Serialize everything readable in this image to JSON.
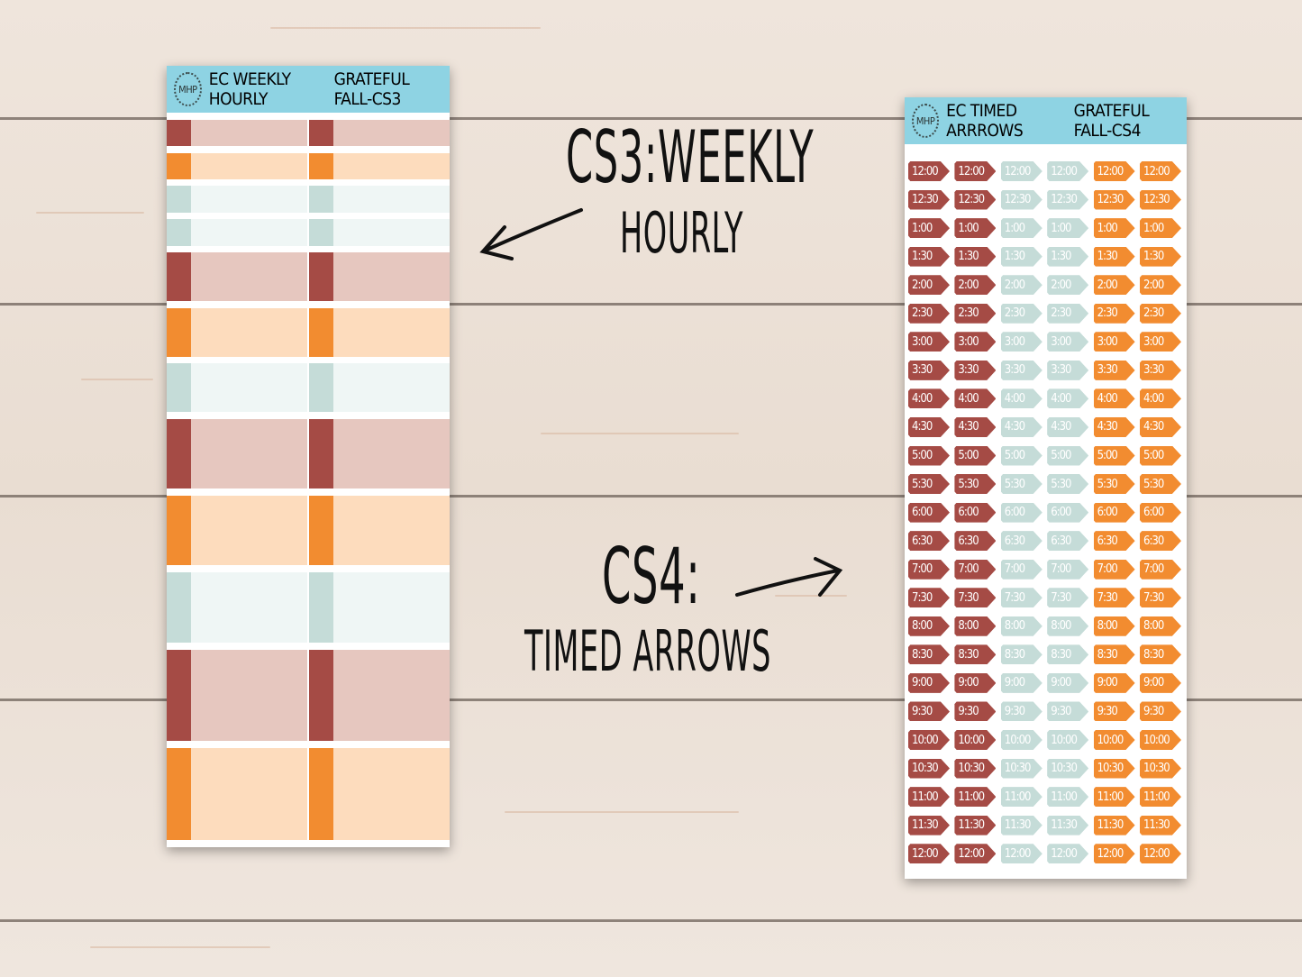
{
  "colors": {
    "red": "#a54b45",
    "orange": "#f28c30",
    "teal": "#c5dcd8",
    "light_red": "#e6c7bf",
    "light_orange": "#fddcbd",
    "light_teal": "#eff6f5",
    "header": "#8ed3e3"
  },
  "cs3_sheet": {
    "logo": "MHP",
    "title": "EC WEEKLY HOURLY",
    "subtitle": "GRATEFUL FALL-CS3",
    "rows": [
      "red",
      "orange",
      "teal",
      "teal",
      "red",
      "orange",
      "teal",
      "red",
      "orange",
      "teal",
      "red",
      "orange"
    ]
  },
  "cs4_sheet": {
    "logo": "MHP",
    "title": "EC TIMED ARRROWS",
    "subtitle": "GRATEFUL FALL-CS4",
    "column_colors": [
      "red",
      "red",
      "teal",
      "teal",
      "orange",
      "orange"
    ],
    "times": [
      "12:00",
      "12:30",
      "1:00",
      "1:30",
      "2:00",
      "2:30",
      "3:00",
      "3:30",
      "4:00",
      "4:30",
      "5:00",
      "5:30",
      "6:00",
      "6:30",
      "7:00",
      "7:30",
      "8:00",
      "8:30",
      "9:00",
      "9:30",
      "10:00",
      "10:30",
      "11:00",
      "11:30",
      "12:00"
    ]
  },
  "labels": {
    "cs3_line1": "CS3:WEEKLY",
    "cs3_line2": "HOURLY",
    "cs4_line1": "CS4:",
    "cs4_line2": "TIMED ARROWS"
  }
}
